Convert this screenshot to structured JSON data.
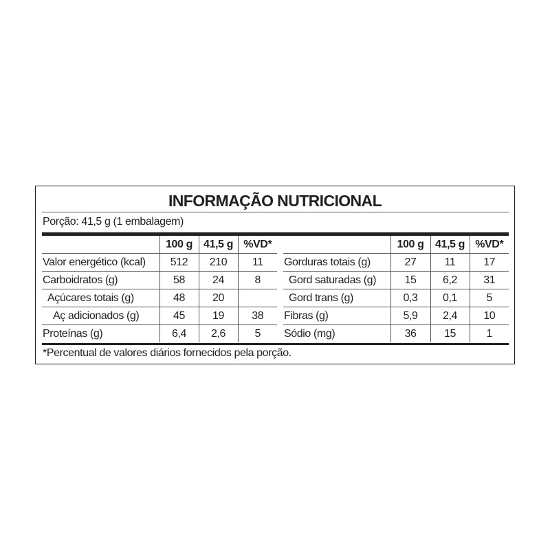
{
  "title": "INFORMAÇÃO NUTRICIONAL",
  "portion": "Porção: 41,5 g (1 embalagem)",
  "headers": [
    "100 g",
    "41,5 g",
    "%VD*"
  ],
  "left_rows": [
    {
      "name": "Valor energético (kcal)",
      "v100": "512",
      "vpor": "210",
      "vd": "11",
      "indent": 0
    },
    {
      "name": "Carboidratos (g)",
      "v100": "58",
      "vpor": "24",
      "vd": "8",
      "indent": 0
    },
    {
      "name": "Açúcares totais (g)",
      "v100": "48",
      "vpor": "20",
      "vd": "",
      "indent": 1
    },
    {
      "name": "Aç adicionados (g)",
      "v100": "45",
      "vpor": "19",
      "vd": "38",
      "indent": 2
    },
    {
      "name": "Proteínas (g)",
      "v100": "6,4",
      "vpor": "2,6",
      "vd": "5",
      "indent": 0
    }
  ],
  "right_rows": [
    {
      "name": "Gorduras totais (g)",
      "v100": "27",
      "vpor": "11",
      "vd": "17",
      "indent": 0
    },
    {
      "name": "Gord saturadas (g)",
      "v100": "15",
      "vpor": "6,2",
      "vd": "31",
      "indent": 1
    },
    {
      "name": "Gord trans (g)",
      "v100": "0,3",
      "vpor": "0,1",
      "vd": "5",
      "indent": 1
    },
    {
      "name": "Fibras (g)",
      "v100": "5,9",
      "vpor": "2,4",
      "vd": "10",
      "indent": 0
    },
    {
      "name": "Sódio (mg)",
      "v100": "36",
      "vpor": "15",
      "vd": "1",
      "indent": 0
    }
  ],
  "footnote": "*Percentual de valores diários fornecidos pela porção."
}
